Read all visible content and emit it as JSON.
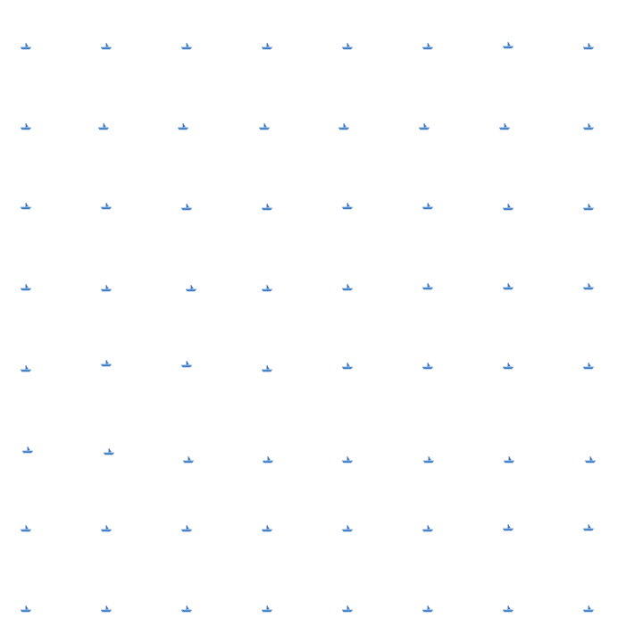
{
  "scene": {
    "background": "#ffffff",
    "icon_name": "boat-icon",
    "icon_colors": {
      "hull_dark": "#2a62b5",
      "hull_light": "#66b0e6",
      "sail": "#3a78c8"
    },
    "rows": 8,
    "columns": 8
  }
}
